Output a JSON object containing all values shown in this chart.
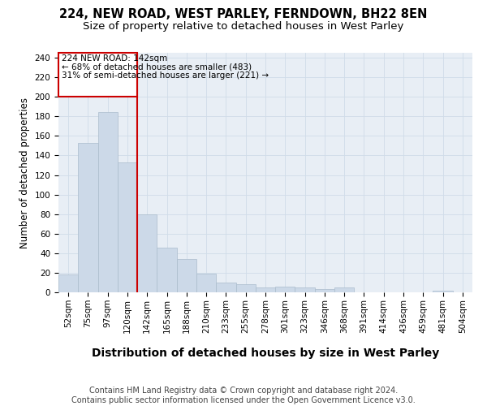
{
  "title_line1": "224, NEW ROAD, WEST PARLEY, FERNDOWN, BH22 8EN",
  "title_line2": "Size of property relative to detached houses in West Parley",
  "xlabel": "Distribution of detached houses by size in West Parley",
  "ylabel": "Number of detached properties",
  "bin_labels": [
    "52sqm",
    "75sqm",
    "97sqm",
    "120sqm",
    "142sqm",
    "165sqm",
    "188sqm",
    "210sqm",
    "233sqm",
    "255sqm",
    "278sqm",
    "301sqm",
    "323sqm",
    "346sqm",
    "368sqm",
    "391sqm",
    "414sqm",
    "436sqm",
    "459sqm",
    "481sqm",
    "504sqm"
  ],
  "bar_heights": [
    18,
    153,
    184,
    133,
    80,
    46,
    34,
    19,
    10,
    8,
    5,
    6,
    5,
    3,
    5,
    0,
    0,
    0,
    0,
    2,
    0
  ],
  "bar_color": "#ccd9e8",
  "bar_edge_color": "#aabccc",
  "vline_color": "#cc0000",
  "annotation_text_line1": "224 NEW ROAD: 142sqm",
  "annotation_text_line2": "← 68% of detached houses are smaller (483)",
  "annotation_text_line3": "31% of semi-detached houses are larger (221) →",
  "annotation_box_color": "#cc0000",
  "ylim": [
    0,
    245
  ],
  "yticks": [
    0,
    20,
    40,
    60,
    80,
    100,
    120,
    140,
    160,
    180,
    200,
    220,
    240
  ],
  "grid_color": "#d0dce8",
  "background_color": "#e8eef5",
  "footer_text": "Contains HM Land Registry data © Crown copyright and database right 2024.\nContains public sector information licensed under the Open Government Licence v3.0.",
  "title_fontsize": 10.5,
  "subtitle_fontsize": 9.5,
  "xlabel_fontsize": 10,
  "ylabel_fontsize": 8.5,
  "tick_fontsize": 7.5,
  "annotation_fontsize": 7.5,
  "footer_fontsize": 7.0
}
